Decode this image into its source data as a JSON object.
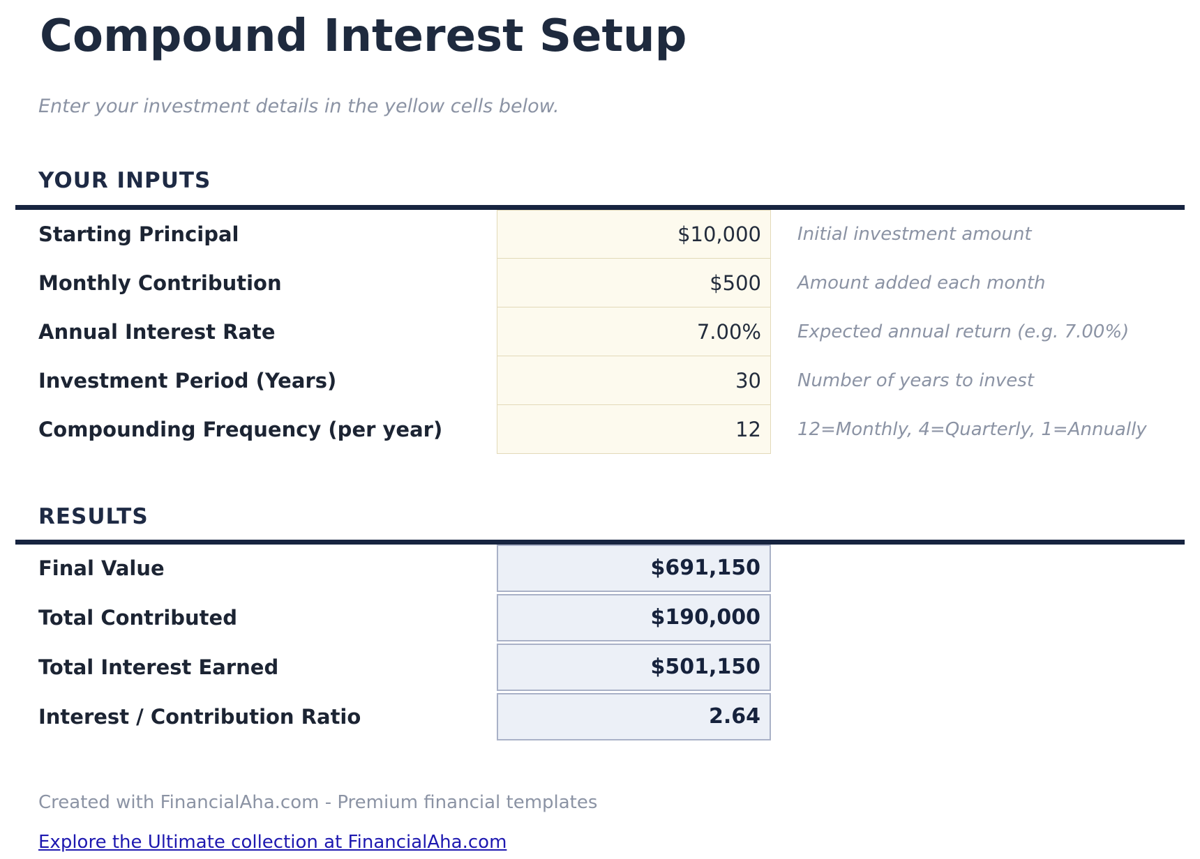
{
  "header": {
    "title": "Compound Interest Setup",
    "subtitle": "Enter your investment details in the yellow cells below."
  },
  "inputs": {
    "heading": "YOUR INPUTS",
    "rows": [
      {
        "label": "Starting Principal",
        "value": "$10,000",
        "description": "Initial investment amount"
      },
      {
        "label": "Monthly Contribution",
        "value": "$500",
        "description": "Amount added each month"
      },
      {
        "label": "Annual Interest Rate",
        "value": "7.00%",
        "description": "Expected annual return (e.g. 7.00%)"
      },
      {
        "label": "Investment Period (Years)",
        "value": "30",
        "description": "Number of years to invest"
      },
      {
        "label": "Compounding Frequency (per year)",
        "value": "12",
        "description": "12=Monthly, 4=Quarterly, 1=Annually"
      }
    ]
  },
  "results": {
    "heading": "RESULTS",
    "rows": [
      {
        "label": "Final Value",
        "value": "$691,150"
      },
      {
        "label": "Total Contributed",
        "value": "$190,000"
      },
      {
        "label": "Total Interest Earned",
        "value": "$501,150"
      },
      {
        "label": "Interest / Contribution Ratio",
        "value": "2.64"
      }
    ]
  },
  "footer": {
    "credit": "Created with FinancialAha.com - Premium financial templates",
    "link_text": "Explore the Ultimate collection at FinancialAha.com"
  },
  "colors": {
    "heading_navy": "#1e2a44",
    "rule_navy": "#172440",
    "input_cell_bg": "#fdfaee",
    "input_cell_border": "#e2d9b8",
    "result_cell_bg": "#ecf0f7",
    "result_cell_border": "#a9b1c7",
    "muted_text": "#8b93a4",
    "link_blue": "#1d18b0"
  }
}
